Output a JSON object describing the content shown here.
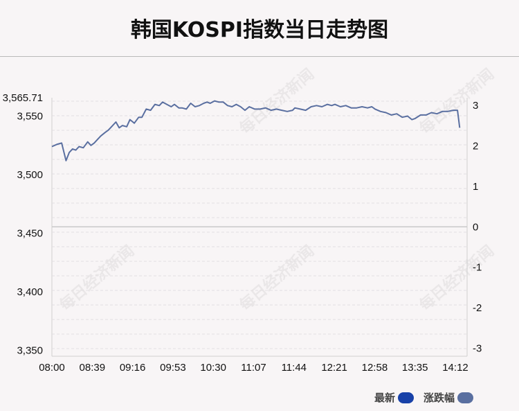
{
  "title": "韩国KOSPI指数当日走势图",
  "legend": {
    "latest_label": "最新",
    "latest_color": "#1841a8",
    "change_label": "涨跌幅",
    "change_color": "#5a6fa0"
  },
  "watermark_text": "每日经济新闻",
  "chart_data": {
    "type": "line",
    "title": "韩国KOSPI指数当日走势图",
    "x_ticks": [
      "08:00",
      "08:39",
      "09:16",
      "09:53",
      "10:30",
      "11:07",
      "11:44",
      "12:21",
      "12:58",
      "13:35",
      "14:12"
    ],
    "y_left_ticks": [
      "3,565.71",
      "3,550",
      "3,500",
      "3,450",
      "3,400",
      "3,350"
    ],
    "y_left_values": [
      3565.71,
      3550,
      3500,
      3450,
      3400,
      3350
    ],
    "y_left_range": [
      3345,
      3565.71
    ],
    "y_right_ticks": [
      "3",
      "2",
      "1",
      "0",
      "-1",
      "-2",
      "-3"
    ],
    "y_right_values": [
      3,
      2,
      1,
      0,
      -1,
      -2,
      -3
    ],
    "reference_value": 3455.5,
    "line_color": "#5a6fa0",
    "series": [
      {
        "name": "涨跌幅",
        "x": [
          "08:00",
          "08:05",
          "08:09",
          "08:13",
          "08:16",
          "08:19",
          "08:22",
          "08:25",
          "08:29",
          "08:33",
          "08:36",
          "08:39",
          "08:42",
          "08:45",
          "08:49",
          "08:52",
          "08:55",
          "08:59",
          "09:02",
          "09:05",
          "09:09",
          "09:12",
          "09:16",
          "09:20",
          "09:23",
          "09:27",
          "09:31",
          "09:35",
          "09:39",
          "09:42",
          "09:46",
          "09:50",
          "09:53",
          "09:57",
          "10:00",
          "10:04",
          "10:08",
          "10:12",
          "10:16",
          "10:20",
          "10:23",
          "10:26",
          "10:30",
          "10:34",
          "10:38",
          "10:42",
          "10:46",
          "10:50",
          "10:54",
          "10:58",
          "11:02",
          "11:07",
          "11:12",
          "11:17",
          "11:22",
          "11:27",
          "11:32",
          "11:37",
          "11:42",
          "11:44",
          "11:49",
          "11:54",
          "11:59",
          "12:04",
          "12:09",
          "12:14",
          "12:18",
          "12:21",
          "12:26",
          "12:31",
          "12:36",
          "12:41",
          "12:46",
          "12:51",
          "12:55",
          "12:58",
          "13:03",
          "13:08",
          "13:13",
          "13:18",
          "13:23",
          "13:28",
          "13:32",
          "13:35",
          "13:40",
          "13:45",
          "13:50",
          "13:55",
          "14:00",
          "14:05",
          "14:10",
          "14:12",
          "14:14",
          "14:16"
        ],
        "values": [
          3524,
          3526,
          3527,
          3512,
          3519,
          3522,
          3521,
          3524,
          3523,
          3528,
          3525,
          3527,
          3530,
          3533,
          3536,
          3538,
          3541,
          3545,
          3540,
          3542,
          3541,
          3547,
          3544,
          3549,
          3549,
          3556,
          3555,
          3560,
          3559,
          3562,
          3560,
          3558,
          3560,
          3557,
          3557,
          3556,
          3561,
          3558,
          3559,
          3561,
          3562,
          3561,
          3563,
          3562,
          3562,
          3559,
          3558,
          3560,
          3558,
          3555,
          3558,
          3556,
          3556,
          3557,
          3555,
          3556,
          3555,
          3554,
          3555,
          3557,
          3556,
          3555,
          3558,
          3559,
          3558,
          3560,
          3559,
          3560,
          3558,
          3559,
          3557,
          3557,
          3558,
          3557,
          3558,
          3556,
          3554,
          3553,
          3551,
          3552,
          3549,
          3550,
          3547,
          3548,
          3551,
          3551,
          3553,
          3552,
          3554,
          3554,
          3555,
          3555,
          3555,
          3540
        ]
      }
    ]
  }
}
